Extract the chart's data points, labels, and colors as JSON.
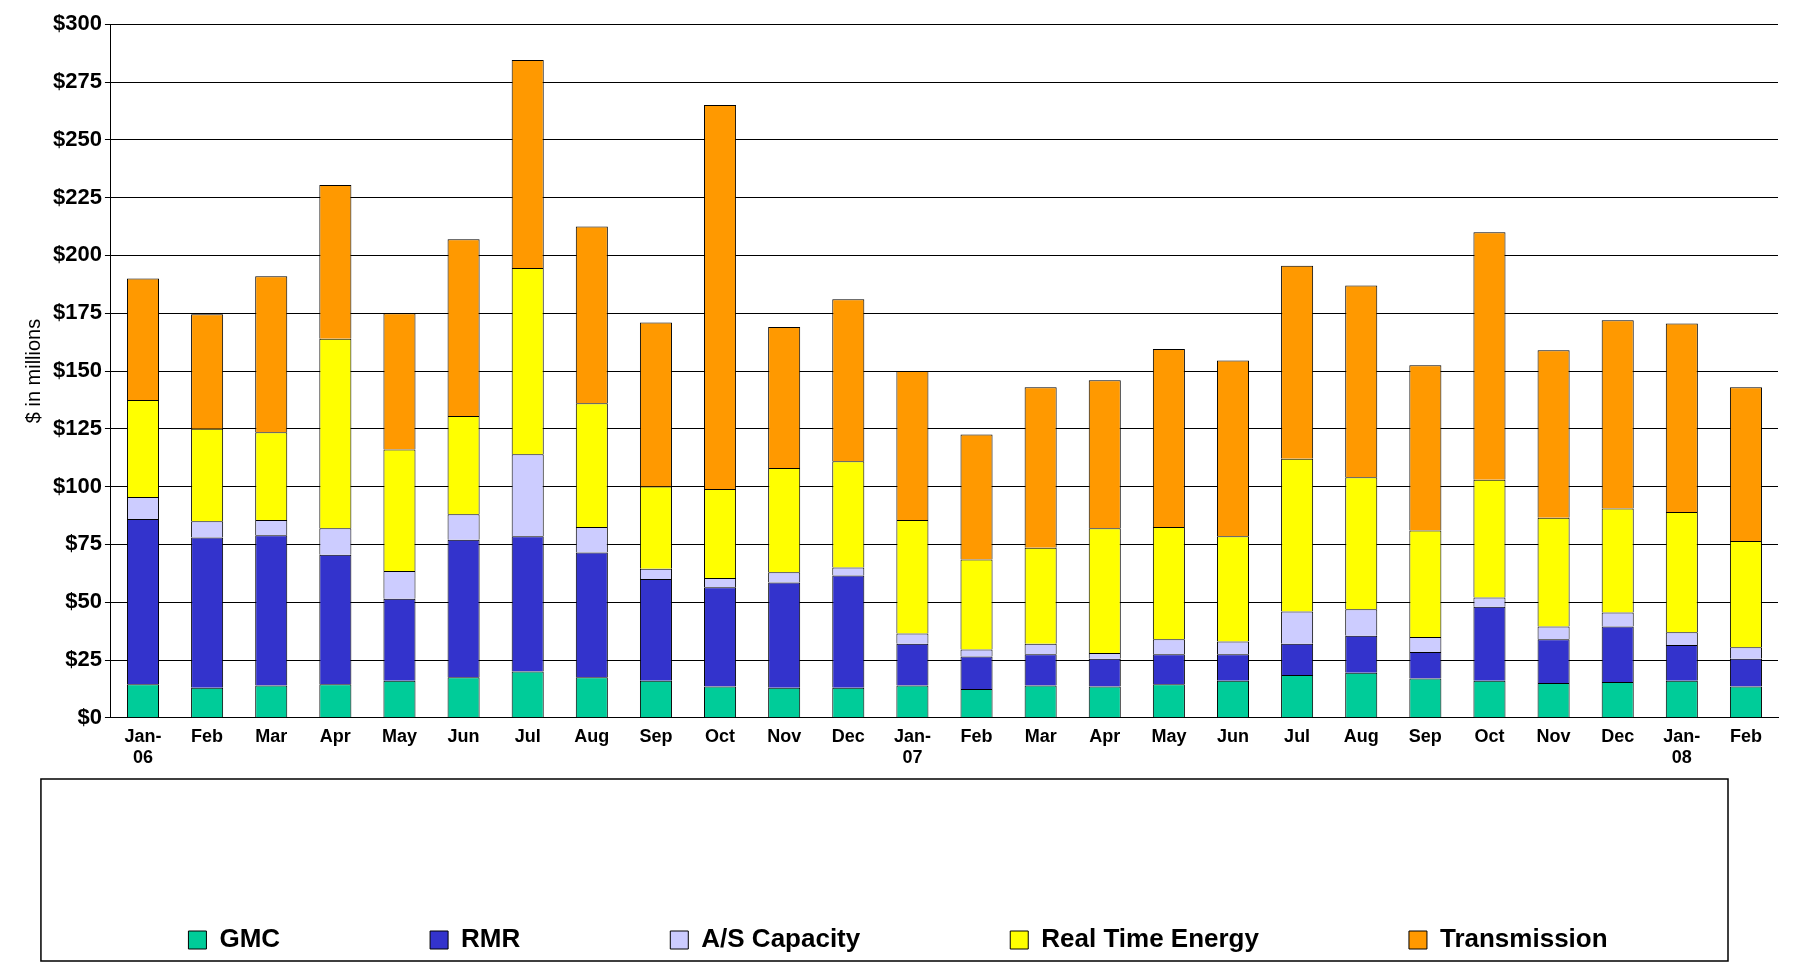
{
  "chart_data": {
    "type": "bar",
    "stacked": true,
    "ylabel": "$ in millions",
    "categories": [
      "Jan-06",
      "Feb",
      "Mar",
      "Apr",
      "May",
      "Jun",
      "Jul",
      "Aug",
      "Sep",
      "Oct",
      "Nov",
      "Dec",
      "Jan-07",
      "Feb",
      "Mar",
      "Apr",
      "May",
      "Jun",
      "Jul",
      "Aug",
      "Sep",
      "Oct",
      "Nov",
      "Dec",
      "Jan-08",
      "Feb"
    ],
    "series": [
      {
        "name": "GMC",
        "color": "#00cc99",
        "values": [
          14.5,
          13,
          14,
          14.5,
          16,
          17.5,
          20,
          17.5,
          16,
          13.5,
          13,
          13,
          14,
          12.5,
          14,
          13.5,
          14.5,
          16,
          18.5,
          19.5,
          17,
          16,
          15,
          15.5,
          16,
          13.5
        ]
      },
      {
        "name": "RMR",
        "color": "#3333cc",
        "values": [
          71.5,
          65,
          65,
          56,
          35.5,
          59.5,
          58.5,
          54,
          44,
          43,
          45.5,
          48.5,
          18,
          14,
          13.5,
          12,
          13,
          11.5,
          13.5,
          16,
          11.5,
          32,
          19,
          24,
          15.5,
          12
        ]
      },
      {
        "name": "A/S Capacity",
        "color": "#ccccff",
        "values": [
          9.5,
          7,
          6.5,
          11.5,
          12,
          11,
          35.5,
          11,
          4.5,
          4,
          4.5,
          3.5,
          4.5,
          3,
          4.5,
          2.5,
          6.5,
          5.5,
          14,
          11.5,
          6.5,
          4,
          5.5,
          6,
          5.5,
          5
        ]
      },
      {
        "name": "Real Time Energy",
        "color": "#ffff00",
        "values": [
          42,
          40,
          38,
          82,
          52.5,
          42.5,
          80.5,
          53.5,
          35.5,
          38.5,
          45,
          46,
          49,
          39,
          41.5,
          54,
          48.5,
          45.5,
          66,
          57,
          46,
          51,
          47,
          45,
          52,
          46
        ]
      },
      {
        "name": "Transmission",
        "color": "#ff9900",
        "values": [
          52.5,
          49.5,
          67.5,
          66.5,
          59,
          76.5,
          90,
          76.5,
          71,
          166,
          61,
          70,
          64.5,
          54,
          69.5,
          64,
          77,
          76,
          83.5,
          83,
          71.5,
          107,
          72.5,
          81.5,
          81.5,
          66.5
        ]
      }
    ],
    "ylim": [
      0,
      300
    ],
    "yticks": [
      {
        "value": 0,
        "label": "$0"
      },
      {
        "value": 25,
        "label": "$25"
      },
      {
        "value": 50,
        "label": "$50"
      },
      {
        "value": 75,
        "label": "$75"
      },
      {
        "value": 100,
        "label": "$100"
      },
      {
        "value": 125,
        "label": "$125"
      },
      {
        "value": 150,
        "label": "$150"
      },
      {
        "value": 175,
        "label": "$175"
      },
      {
        "value": 200,
        "label": "$200"
      },
      {
        "value": 225,
        "label": "$225"
      },
      {
        "value": 250,
        "label": "$250"
      },
      {
        "value": 275,
        "label": "$275"
      },
      {
        "value": 300,
        "label": "$300"
      }
    ],
    "grid": "y",
    "legend": "bottom"
  }
}
